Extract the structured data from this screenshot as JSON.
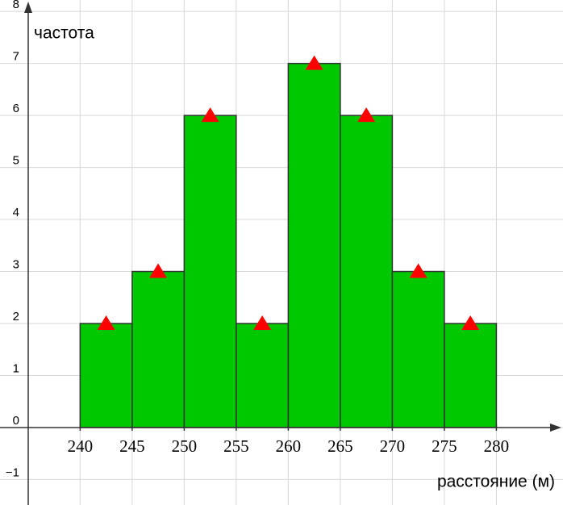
{
  "chart_data": {
    "type": "histogram",
    "xlabel": "расстояние (м)",
    "ylabel": "частота",
    "bins": [
      240,
      245,
      250,
      255,
      260,
      265,
      270,
      275,
      280
    ],
    "values": [
      2,
      3,
      6,
      2,
      7,
      6,
      3,
      2
    ],
    "color": "#00c800",
    "marker_color": "#ff0000",
    "xlim": [
      232.3,
      286.4
    ],
    "ylim": [
      -1.49,
      8.22
    ],
    "xticks": [
      240,
      245,
      250,
      255,
      260,
      265,
      270,
      275,
      280
    ],
    "yticks": [
      {
        "value": -1,
        "label": "−1"
      },
      0,
      1,
      2,
      3,
      4,
      5,
      6,
      7,
      8
    ],
    "grid": true
  }
}
